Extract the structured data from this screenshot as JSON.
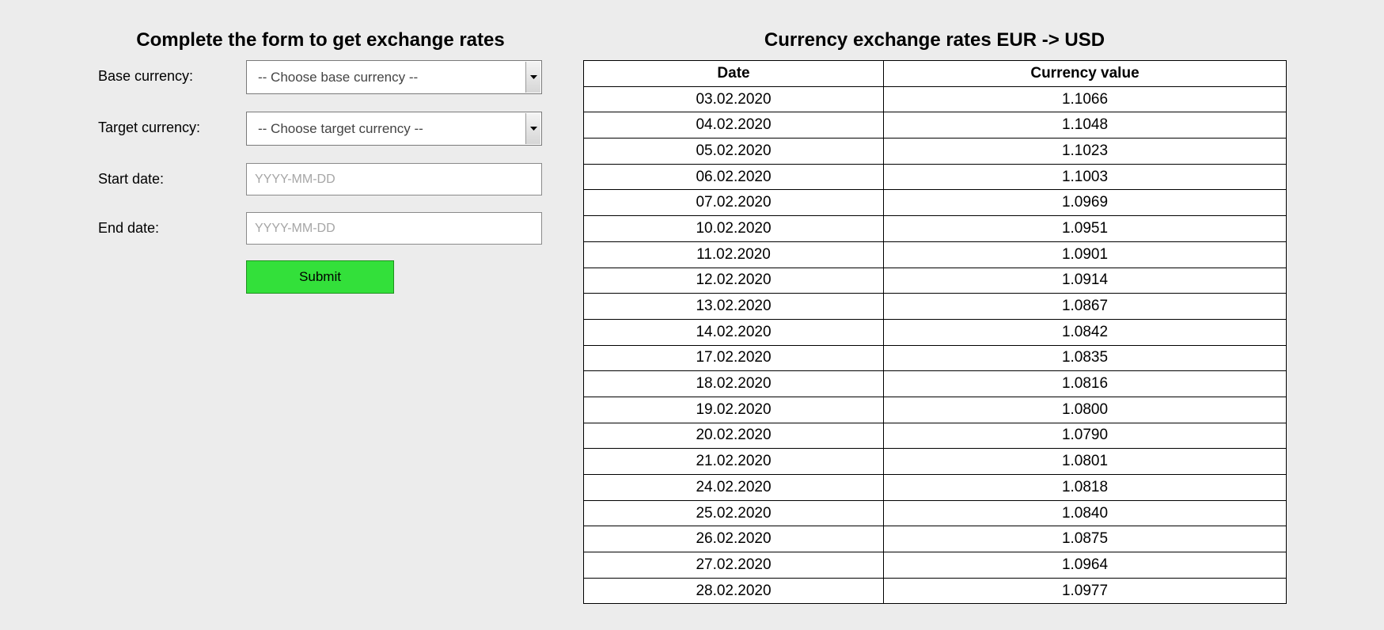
{
  "form": {
    "title": "Complete the form to get exchange rates",
    "base_currency": {
      "label": "Base currency:",
      "selected": "-- Choose base currency --"
    },
    "target_currency": {
      "label": "Target currency:",
      "selected": "-- Choose target currency --"
    },
    "start_date": {
      "label": "Start date:",
      "value": "",
      "placeholder": "YYYY-MM-DD"
    },
    "end_date": {
      "label": "End date:",
      "value": "",
      "placeholder": "YYYY-MM-DD"
    },
    "submit_label": "Submit",
    "submit_color": "#33e03a"
  },
  "rates": {
    "title": "Currency exchange rates EUR -> USD",
    "columns": [
      "Date",
      "Currency value"
    ],
    "rows": [
      [
        "03.02.2020",
        "1.1066"
      ],
      [
        "04.02.2020",
        "1.1048"
      ],
      [
        "05.02.2020",
        "1.1023"
      ],
      [
        "06.02.2020",
        "1.1003"
      ],
      [
        "07.02.2020",
        "1.0969"
      ],
      [
        "10.02.2020",
        "1.0951"
      ],
      [
        "11.02.2020",
        "1.0901"
      ],
      [
        "12.02.2020",
        "1.0914"
      ],
      [
        "13.02.2020",
        "1.0867"
      ],
      [
        "14.02.2020",
        "1.0842"
      ],
      [
        "17.02.2020",
        "1.0835"
      ],
      [
        "18.02.2020",
        "1.0816"
      ],
      [
        "19.02.2020",
        "1.0800"
      ],
      [
        "20.02.2020",
        "1.0790"
      ],
      [
        "21.02.2020",
        "1.0801"
      ],
      [
        "24.02.2020",
        "1.0818"
      ],
      [
        "25.02.2020",
        "1.0840"
      ],
      [
        "26.02.2020",
        "1.0875"
      ],
      [
        "27.02.2020",
        "1.0964"
      ],
      [
        "28.02.2020",
        "1.0977"
      ]
    ]
  },
  "icons": {
    "dropdown": "caret-down-icon"
  }
}
